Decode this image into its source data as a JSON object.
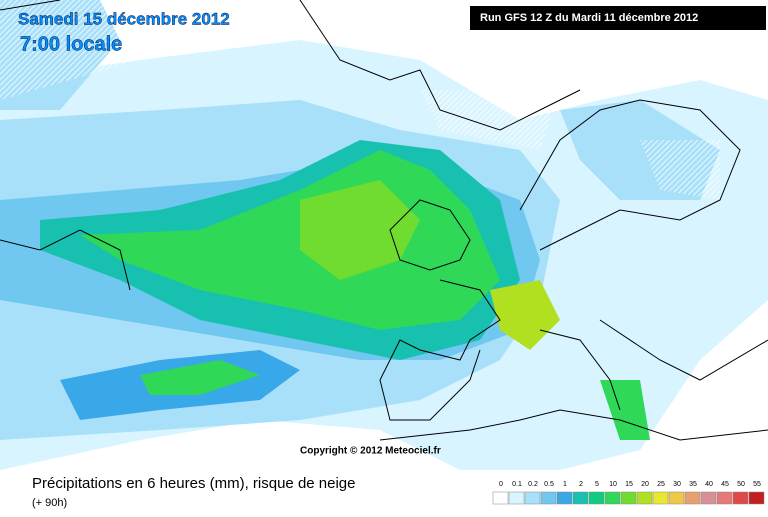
{
  "header": {
    "date": "Samedi 15 décembre 2012",
    "time": "7:00 locale",
    "run": "Run GFS 12 Z du Mardi 11 décembre 2012"
  },
  "map": {
    "copyright": "Copyright © 2012 Meteociel.fr"
  },
  "footer": {
    "title": "Précipitations en 6 heures (mm), risque de neige",
    "lead": "(+ 90h)"
  },
  "legend": {
    "thresholds": [
      0,
      0.1,
      0.2,
      0.5,
      1,
      2,
      5,
      10,
      15,
      20,
      25,
      30,
      35,
      40,
      45,
      50,
      55
    ],
    "colors": [
      "#ffffff",
      "#d8f4ff",
      "#a8e0fa",
      "#70c8f0",
      "#38a8e8",
      "#18c0b0",
      "#10cc80",
      "#30d858",
      "#70dc30",
      "#b0e020",
      "#e8e830",
      "#f0c848",
      "#e8a070",
      "#d89098",
      "#e87878",
      "#e04848",
      "#c02020"
    ]
  }
}
